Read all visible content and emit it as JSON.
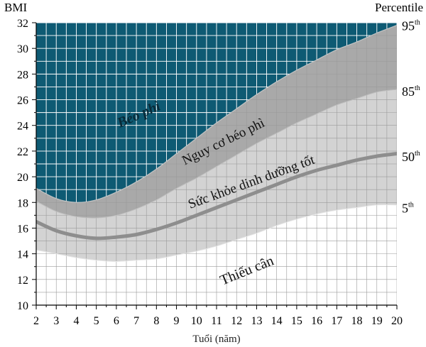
{
  "chart_data": {
    "type": "area",
    "ylabel": "BMI",
    "xlabel": "Tuổi (năm)",
    "right_axis_title": "Percentile",
    "x_ticks": [
      2,
      3,
      4,
      5,
      6,
      7,
      8,
      9,
      10,
      11,
      12,
      13,
      14,
      15,
      16,
      17,
      18,
      19,
      20
    ],
    "y_ticks": [
      10,
      12,
      14,
      16,
      18,
      20,
      22,
      24,
      26,
      28,
      30,
      32
    ],
    "xlim": [
      2,
      20
    ],
    "ylim": [
      10,
      32
    ],
    "grid": true,
    "percentile_labels": [
      {
        "base": "95",
        "sup": "th",
        "y": 31.8
      },
      {
        "base": "85",
        "sup": "th",
        "y": 26.7
      },
      {
        "base": "50",
        "sup": "th",
        "y": 21.6
      },
      {
        "base": "5",
        "sup": "th",
        "y": 17.6
      }
    ],
    "curves": {
      "p95": {
        "x": [
          2,
          3,
          4,
          5,
          6,
          7,
          8,
          9,
          10,
          11,
          12,
          13,
          14,
          15,
          16,
          17,
          18,
          19,
          20
        ],
        "y": [
          19.1,
          18.3,
          18.0,
          18.2,
          18.8,
          19.6,
          20.6,
          21.8,
          23.0,
          24.2,
          25.3,
          26.4,
          27.4,
          28.3,
          29.1,
          29.9,
          30.5,
          31.2,
          31.8
        ]
      },
      "p85": {
        "x": [
          2,
          3,
          4,
          5,
          6,
          7,
          8,
          9,
          10,
          11,
          12,
          13,
          14,
          15,
          16,
          17,
          18,
          19,
          20
        ],
        "y": [
          18.1,
          17.3,
          16.9,
          16.8,
          17.0,
          17.5,
          18.2,
          19.1,
          19.9,
          20.8,
          21.7,
          22.6,
          23.4,
          24.2,
          24.9,
          25.6,
          26.1,
          26.6,
          26.8
        ]
      },
      "p50": {
        "x": [
          2,
          3,
          4,
          5,
          6,
          7,
          8,
          9,
          10,
          11,
          12,
          13,
          14,
          15,
          16,
          17,
          18,
          19,
          20
        ],
        "y": [
          16.5,
          15.8,
          15.4,
          15.2,
          15.3,
          15.5,
          15.9,
          16.4,
          17.0,
          17.6,
          18.2,
          18.8,
          19.4,
          20.0,
          20.5,
          20.9,
          21.3,
          21.6,
          21.8
        ]
      },
      "p5": {
        "x": [
          2,
          3,
          4,
          5,
          6,
          7,
          8,
          9,
          10,
          11,
          12,
          13,
          14,
          15,
          16,
          17,
          18,
          19,
          20
        ],
        "y": [
          14.3,
          14.0,
          13.7,
          13.5,
          13.4,
          13.5,
          13.6,
          13.9,
          14.2,
          14.6,
          15.1,
          15.6,
          16.2,
          16.7,
          17.1,
          17.4,
          17.6,
          17.8,
          17.8
        ]
      }
    },
    "region_labels": [
      {
        "key": "obese",
        "text": "Béo phì"
      },
      {
        "key": "overweight",
        "text": "Nguy cơ béo phì"
      },
      {
        "key": "healthy",
        "text": "Sức khỏe dinh dưỡng tốt"
      },
      {
        "key": "underweight",
        "text": "Thiếu cân"
      }
    ],
    "colors": {
      "obese": "#0e5a73",
      "overweight": "#a9a9a9",
      "healthy": "#d3d3d3",
      "underweight": "#ffffff",
      "median_line": "#8e8e8e",
      "grid_on_dark": "#ffffff",
      "grid_on_light": "#9a9a9a"
    }
  }
}
